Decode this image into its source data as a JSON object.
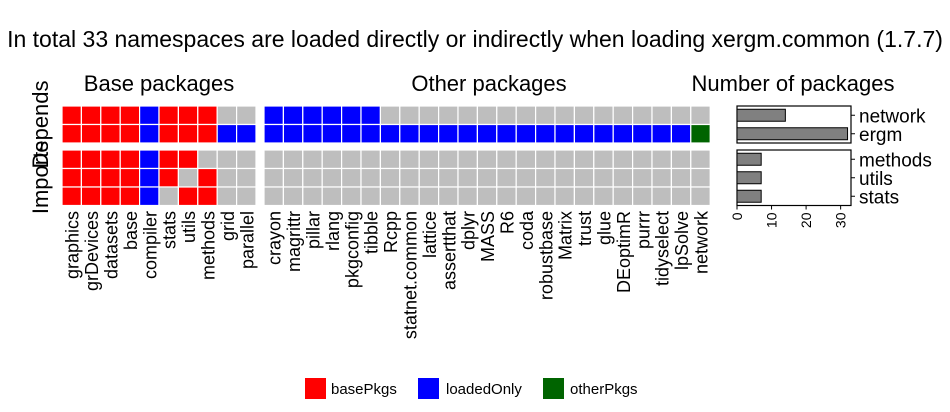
{
  "chart_data": {
    "type": "heatmap",
    "title": "In total 33 namespaces are loaded directly or indirectly when loading xergm.common (1.7.7)",
    "column_groups": {
      "base": {
        "label": "Base packages",
        "packages": [
          "graphics",
          "grDevices",
          "datasets",
          "base",
          "compiler",
          "stats",
          "utils",
          "methods",
          "grid",
          "parallel"
        ]
      },
      "other": {
        "label": "Other packages",
        "packages": [
          "crayon",
          "magrittr",
          "pillar",
          "rlang",
          "pkgconfig",
          "tibble",
          "Rcpp",
          "statnet.common",
          "lattice",
          "assertthat",
          "dplyr",
          "MASS",
          "R6",
          "coda",
          "robustbase",
          "Matrix",
          "trust",
          "glue",
          "DEoptimR",
          "purrr",
          "tidyselect",
          "lpSolve",
          "network"
        ]
      }
    },
    "row_groups": [
      {
        "label": "Depends",
        "rows": [
          {
            "name": "network",
            "base": [
              "basePkgs",
              "basePkgs",
              "basePkgs",
              "basePkgs",
              "loadedOnly",
              "basePkgs",
              "basePkgs",
              "basePkgs",
              null,
              null
            ],
            "other": [
              "loadedOnly",
              "loadedOnly",
              "loadedOnly",
              "loadedOnly",
              "loadedOnly",
              "loadedOnly",
              null,
              null,
              null,
              null,
              null,
              null,
              null,
              null,
              null,
              null,
              null,
              null,
              null,
              null,
              null,
              null,
              null
            ]
          },
          {
            "name": "ergm",
            "base": [
              "basePkgs",
              "basePkgs",
              "basePkgs",
              "basePkgs",
              "loadedOnly",
              "basePkgs",
              "basePkgs",
              "basePkgs",
              "loadedOnly",
              "loadedOnly"
            ],
            "other": [
              "loadedOnly",
              "loadedOnly",
              "loadedOnly",
              "loadedOnly",
              "loadedOnly",
              "loadedOnly",
              "loadedOnly",
              "loadedOnly",
              "loadedOnly",
              "loadedOnly",
              "loadedOnly",
              "loadedOnly",
              "loadedOnly",
              "loadedOnly",
              "loadedOnly",
              "loadedOnly",
              "loadedOnly",
              "loadedOnly",
              "loadedOnly",
              "loadedOnly",
              "loadedOnly",
              "loadedOnly",
              "otherPkgs"
            ]
          }
        ]
      },
      {
        "label": "Imports",
        "rows": [
          {
            "name": "methods",
            "base": [
              "basePkgs",
              "basePkgs",
              "basePkgs",
              "basePkgs",
              "loadedOnly",
              "basePkgs",
              "basePkgs",
              null,
              null,
              null
            ],
            "other": [
              null,
              null,
              null,
              null,
              null,
              null,
              null,
              null,
              null,
              null,
              null,
              null,
              null,
              null,
              null,
              null,
              null,
              null,
              null,
              null,
              null,
              null,
              null
            ]
          },
          {
            "name": "utils",
            "base": [
              "basePkgs",
              "basePkgs",
              "basePkgs",
              "basePkgs",
              "loadedOnly",
              "basePkgs",
              null,
              "basePkgs",
              null,
              null
            ],
            "other": [
              null,
              null,
              null,
              null,
              null,
              null,
              null,
              null,
              null,
              null,
              null,
              null,
              null,
              null,
              null,
              null,
              null,
              null,
              null,
              null,
              null,
              null,
              null
            ]
          },
          {
            "name": "stats",
            "base": [
              "basePkgs",
              "basePkgs",
              "basePkgs",
              "basePkgs",
              "loadedOnly",
              null,
              "basePkgs",
              "basePkgs",
              null,
              null
            ],
            "other": [
              null,
              null,
              null,
              null,
              null,
              null,
              null,
              null,
              null,
              null,
              null,
              null,
              null,
              null,
              null,
              null,
              null,
              null,
              null,
              null,
              null,
              null,
              null
            ]
          }
        ]
      }
    ],
    "bar_panel": {
      "title": "Number of packages",
      "values": {
        "network": 14,
        "ergm": 32,
        "methods": 7,
        "utils": 7,
        "stats": 7
      },
      "xlim": [
        0,
        33
      ],
      "ticks": [
        0,
        10,
        20,
        30
      ],
      "bar_color": "#808080"
    },
    "legend": {
      "position": "bottom",
      "entries": [
        {
          "key": "basePkgs",
          "label": "basePkgs",
          "color": "#ff0000"
        },
        {
          "key": "loadedOnly",
          "label": "loadedOnly",
          "color": "#0000ff"
        },
        {
          "key": "otherPkgs",
          "label": "otherPkgs",
          "color": "#006400"
        }
      ]
    },
    "empty_color": "#bebebe"
  }
}
